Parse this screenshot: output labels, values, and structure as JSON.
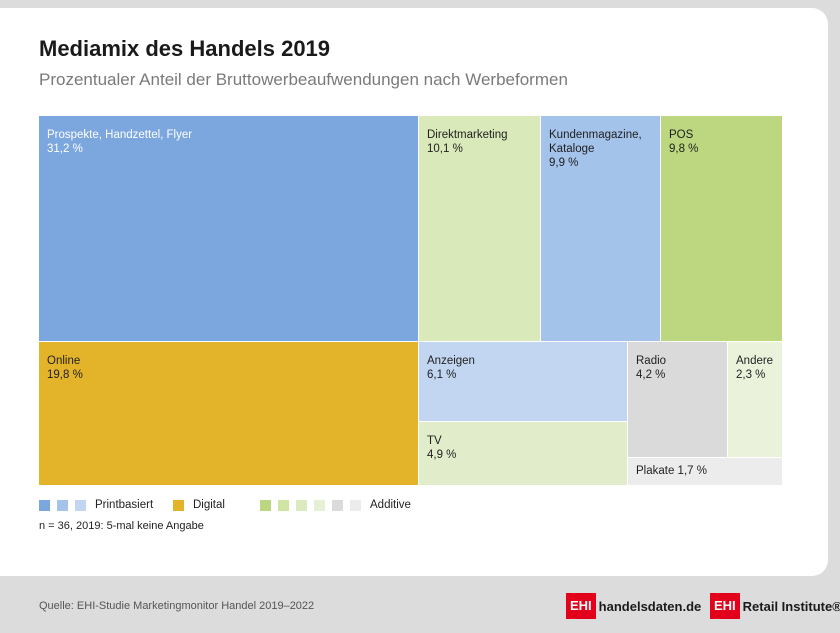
{
  "header": {
    "title": "Mediamix des Handels 2019",
    "subtitle": "Prozentualer Anteil der Bruttowerbeaufwendungen nach Werbeformen"
  },
  "chart_data": {
    "type": "treemap",
    "title": "Mediamix des Handels 2019",
    "subtitle": "Prozentualer Anteil der Bruttowerbeaufwendungen nach Werbeformen",
    "unit": "%",
    "items": [
      {
        "label": "Prospekte, Handzettel, Flyer",
        "value_text": "31,2 %",
        "value": 31.2,
        "group": "Printbasiert",
        "color": "#7ba7de"
      },
      {
        "label": "Direktmarketing",
        "value_text": "10,1 %",
        "value": 10.1,
        "group": "Additive",
        "color": "#d9e9b9"
      },
      {
        "label": "Kundenmagazine, Kataloge",
        "value_text": "9,9 %",
        "value": 9.9,
        "group": "Printbasiert",
        "color": "#a3c3eb"
      },
      {
        "label": "POS",
        "value_text": "9,8 %",
        "value": 9.8,
        "group": "Additive",
        "color": "#bcd77f"
      },
      {
        "label": "Online",
        "value_text": "19,8 %",
        "value": 19.8,
        "group": "Digital",
        "color": "#e3b42a"
      },
      {
        "label": "Anzeigen",
        "value_text": "6,1 %",
        "value": 6.1,
        "group": "Printbasiert",
        "color": "#c2d6f1"
      },
      {
        "label": "TV",
        "value_text": "4,9 %",
        "value": 4.9,
        "group": "Additive",
        "color": "#e1ecca"
      },
      {
        "label": "Radio",
        "value_text": "4,2 %",
        "value": 4.2,
        "group": "Additive",
        "color": "#dadada"
      },
      {
        "label": "Andere",
        "value_text": "2,3 %",
        "value": 2.3,
        "group": "Additive",
        "color": "#eaf2dc"
      },
      {
        "label": "Plakate",
        "value_text": "1,7 %",
        "value": 1.7,
        "group": "Additive",
        "color": "#ececec"
      }
    ],
    "legend": [
      {
        "label": "Printbasiert",
        "colors": [
          "#7ba7de",
          "#a3c3eb",
          "#c2d6f1"
        ]
      },
      {
        "label": "Digital",
        "colors": [
          "#e3b42a"
        ]
      },
      {
        "label": "Additive",
        "colors": [
          "#bcd77f",
          "#d0e4a4",
          "#dcebbf",
          "#e6f0d6",
          "#dadada",
          "#ececec"
        ]
      }
    ],
    "legend_placement": "bottom"
  },
  "note": "n = 36, 2019: 5-mal keine Angabe",
  "footer": {
    "source": "Quelle: EHI-Studie Marketingmonitor Handel 2019–2022",
    "logo1_box": "EHI",
    "logo1_text": "handelsdaten.de",
    "logo2_box": "EHI",
    "logo2_text": "Retail Institute®"
  },
  "colors": {
    "background": "#dcdcdc",
    "card": "#ffffff",
    "brand_red": "#e2001a"
  }
}
